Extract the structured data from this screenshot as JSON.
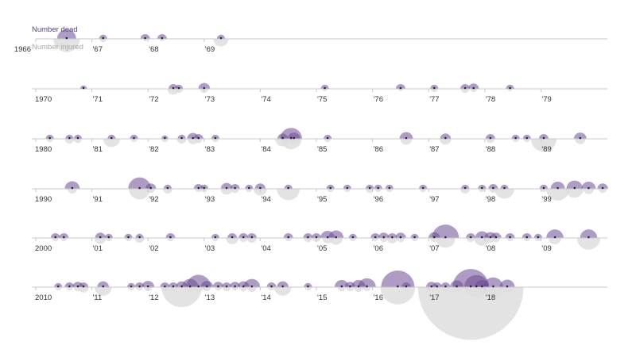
{
  "legend": {
    "dead_label": "Number dead",
    "injured_label": "Number injured"
  },
  "colors": {
    "dead": "#6d4a93",
    "injured": "#dedede",
    "axis": "#c8c8c8",
    "tick_text": "#333333",
    "dot": "#2e1d44"
  },
  "chart_data": {
    "type": "timeline-bubble",
    "title": "",
    "rows": [
      {
        "start_year": 1966,
        "tick_labels": [
          "1966",
          "'67",
          "'68",
          "'69"
        ],
        "events": [
          {
            "date": 1966.55,
            "dead": 16,
            "injured": 31
          },
          {
            "date": 1967.2,
            "dead": 3,
            "injured": 2
          },
          {
            "date": 1967.95,
            "dead": 4,
            "injured": 1
          },
          {
            "date": 1968.25,
            "dead": 4,
            "injured": 1
          },
          {
            "date": 1969.3,
            "dead": 3,
            "injured": 10
          }
        ]
      },
      {
        "start_year": 1970,
        "tick_labels": [
          "1970",
          "'71",
          "'72",
          "'73",
          "'74",
          "'75",
          "'76",
          "'77",
          "'78",
          "'79"
        ],
        "events": [
          {
            "date": 1970.85,
            "dead": 2,
            "injured": 0
          },
          {
            "date": 1972.45,
            "dead": 4,
            "injured": 6
          },
          {
            "date": 1972.55,
            "dead": 3,
            "injured": 3
          },
          {
            "date": 1973.0,
            "dead": 6,
            "injured": 3
          },
          {
            "date": 1975.15,
            "dead": 3,
            "injured": 1
          },
          {
            "date": 1976.5,
            "dead": 4,
            "injured": 1
          },
          {
            "date": 1977.1,
            "dead": 3,
            "injured": 2
          },
          {
            "date": 1977.65,
            "dead": 4,
            "injured": 3
          },
          {
            "date": 1977.8,
            "dead": 5,
            "injured": 2
          },
          {
            "date": 1978.45,
            "dead": 3,
            "injured": 1
          }
        ]
      },
      {
        "start_year": 1980,
        "tick_labels": [
          "1980",
          "'81",
          "'82",
          "'83",
          "'84",
          "'85",
          "'86",
          "'87",
          "'88",
          "'89"
        ],
        "events": [
          {
            "date": 1980.25,
            "dead": 3,
            "injured": 2
          },
          {
            "date": 1980.6,
            "dead": 3,
            "injured": 4
          },
          {
            "date": 1980.75,
            "dead": 3,
            "injured": 3
          },
          {
            "date": 1981.35,
            "dead": 3,
            "injured": 12
          },
          {
            "date": 1981.75,
            "dead": 3,
            "injured": 2
          },
          {
            "date": 1982.3,
            "dead": 2,
            "injured": 2
          },
          {
            "date": 1982.6,
            "dead": 3,
            "injured": 4
          },
          {
            "date": 1982.8,
            "dead": 6,
            "injured": 5
          },
          {
            "date": 1982.9,
            "dead": 4,
            "injured": 3
          },
          {
            "date": 1983.2,
            "dead": 3,
            "injured": 2
          },
          {
            "date": 1984.4,
            "dead": 5,
            "injured": 10
          },
          {
            "date": 1984.55,
            "dead": 21,
            "injured": 19
          },
          {
            "date": 1984.6,
            "dead": 7,
            "injured": 5
          },
          {
            "date": 1985.2,
            "dead": 3,
            "injured": 2
          },
          {
            "date": 1986.6,
            "dead": 8,
            "injured": 6
          },
          {
            "date": 1987.3,
            "dead": 5,
            "injured": 6
          },
          {
            "date": 1988.1,
            "dead": 4,
            "injured": 3
          },
          {
            "date": 1988.55,
            "dead": 3,
            "injured": 2
          },
          {
            "date": 1988.75,
            "dead": 3,
            "injured": 2
          },
          {
            "date": 1989.05,
            "dead": 4,
            "injured": 29
          },
          {
            "date": 1989.7,
            "dead": 7,
            "injured": 5
          }
        ]
      },
      {
        "start_year": 1990,
        "tick_labels": [
          "1990",
          "'91",
          "'92",
          "'93",
          "'94",
          "'95",
          "'96",
          "'97",
          "'98",
          "'99"
        ],
        "events": [
          {
            "date": 1990.65,
            "dead": 10,
            "injured": 4
          },
          {
            "date": 1991.85,
            "dead": 23,
            "injured": 20
          },
          {
            "date": 1992.05,
            "dead": 5,
            "injured": 3
          },
          {
            "date": 1992.35,
            "dead": 3,
            "injured": 4
          },
          {
            "date": 1992.9,
            "dead": 4,
            "injured": 2
          },
          {
            "date": 1993.0,
            "dead": 3,
            "injured": 2
          },
          {
            "date": 1993.4,
            "dead": 6,
            "injured": 6
          },
          {
            "date": 1993.55,
            "dead": 4,
            "injured": 3
          },
          {
            "date": 1993.8,
            "dead": 3,
            "injured": 2
          },
          {
            "date": 1994.0,
            "dead": 5,
            "injured": 8
          },
          {
            "date": 1994.5,
            "dead": 3,
            "injured": 23
          },
          {
            "date": 1995.25,
            "dead": 3,
            "injured": 2
          },
          {
            "date": 1995.55,
            "dead": 3,
            "injured": 2
          },
          {
            "date": 1995.95,
            "dead": 3,
            "injured": 3
          },
          {
            "date": 1996.1,
            "dead": 3,
            "injured": 2
          },
          {
            "date": 1996.3,
            "dead": 3,
            "injured": 2
          },
          {
            "date": 1996.9,
            "dead": 3,
            "injured": 2
          },
          {
            "date": 1997.65,
            "dead": 3,
            "injured": 4
          },
          {
            "date": 1997.95,
            "dead": 3,
            "injured": 2
          },
          {
            "date": 1998.15,
            "dead": 4,
            "injured": 3
          },
          {
            "date": 1998.35,
            "dead": 3,
            "injured": 17
          },
          {
            "date": 1999.05,
            "dead": 3,
            "injured": 2
          },
          {
            "date": 1999.3,
            "dead": 9,
            "injured": 24
          },
          {
            "date": 1999.6,
            "dead": 12,
            "injured": 14
          },
          {
            "date": 1999.85,
            "dead": 9,
            "injured": 5
          },
          {
            "date": 2000.1,
            "dead": 5,
            "injured": 3
          }
        ]
      },
      {
        "start_year": 2000,
        "tick_labels": [
          "2000",
          "'01",
          "'02",
          "'03",
          "'04",
          "'05",
          "'06",
          "'07",
          "'08",
          "'09"
        ],
        "events": [
          {
            "date": 2000.35,
            "dead": 4,
            "injured": 2
          },
          {
            "date": 2000.5,
            "dead": 4,
            "injured": 2
          },
          {
            "date": 2001.15,
            "dead": 5,
            "injured": 6
          },
          {
            "date": 2001.3,
            "dead": 3,
            "injured": 2
          },
          {
            "date": 2001.65,
            "dead": 3,
            "injured": 2
          },
          {
            "date": 2001.85,
            "dead": 3,
            "injured": 4
          },
          {
            "date": 2002.4,
            "dead": 4,
            "injured": 2
          },
          {
            "date": 2003.2,
            "dead": 3,
            "injured": 2
          },
          {
            "date": 2003.5,
            "dead": 4,
            "injured": 7
          },
          {
            "date": 2003.7,
            "dead": 4,
            "injured": 3
          },
          {
            "date": 2003.85,
            "dead": 4,
            "injured": 4
          },
          {
            "date": 2004.5,
            "dead": 4,
            "injured": 2
          },
          {
            "date": 2004.85,
            "dead": 4,
            "injured": 3
          },
          {
            "date": 2005.0,
            "dead": 4,
            "injured": 3
          },
          {
            "date": 2005.2,
            "dead": 9,
            "injured": 5
          },
          {
            "date": 2005.35,
            "dead": 10,
            "injured": 8
          },
          {
            "date": 2005.65,
            "dead": 3,
            "injured": 2
          },
          {
            "date": 2006.05,
            "dead": 4,
            "injured": 2
          },
          {
            "date": 2006.2,
            "dead": 5,
            "injured": 3
          },
          {
            "date": 2006.35,
            "dead": 4,
            "injured": 5
          },
          {
            "date": 2006.5,
            "dead": 5,
            "injured": 3
          },
          {
            "date": 2006.75,
            "dead": 3,
            "injured": 2
          },
          {
            "date": 2007.1,
            "dead": 6,
            "injured": 3
          },
          {
            "date": 2007.3,
            "dead": 32,
            "injured": 17
          },
          {
            "date": 2007.75,
            "dead": 4,
            "injured": 3
          },
          {
            "date": 2007.95,
            "dead": 8,
            "injured": 11
          },
          {
            "date": 2008.1,
            "dead": 6,
            "injured": 4
          },
          {
            "date": 2008.2,
            "dead": 5,
            "injured": 3
          },
          {
            "date": 2008.45,
            "dead": 4,
            "injured": 2
          },
          {
            "date": 2008.75,
            "dead": 4,
            "injured": 2
          },
          {
            "date": 2008.95,
            "dead": 3,
            "injured": 2
          },
          {
            "date": 2009.25,
            "dead": 13,
            "injured": 7
          },
          {
            "date": 2009.85,
            "dead": 13,
            "injured": 24
          }
        ]
      },
      {
        "start_year": 2010,
        "tick_labels": [
          "2010",
          "'11",
          "'12",
          "'13",
          "'14",
          "'15",
          "'16",
          "'17",
          "'18"
        ],
        "events": [
          {
            "date": 2010.4,
            "dead": 3,
            "injured": 2
          },
          {
            "date": 2010.6,
            "dead": 4,
            "injured": 2
          },
          {
            "date": 2010.75,
            "dead": 5,
            "injured": 3
          },
          {
            "date": 2010.85,
            "dead": 4,
            "injured": 5
          },
          {
            "date": 2011.2,
            "dead": 6,
            "injured": 13
          },
          {
            "date": 2011.7,
            "dead": 3,
            "injured": 2
          },
          {
            "date": 2011.85,
            "dead": 4,
            "injured": 2
          },
          {
            "date": 2012.0,
            "dead": 7,
            "injured": 3
          },
          {
            "date": 2012.3,
            "dead": 4,
            "injured": 3
          },
          {
            "date": 2012.45,
            "dead": 4,
            "injured": 3
          },
          {
            "date": 2012.6,
            "dead": 6,
            "injured": 70
          },
          {
            "date": 2012.75,
            "dead": 12,
            "injured": 5
          },
          {
            "date": 2012.9,
            "dead": 27,
            "injured": 4
          },
          {
            "date": 2013.05,
            "dead": 7,
            "injured": 3
          },
          {
            "date": 2013.25,
            "dead": 5,
            "injured": 2
          },
          {
            "date": 2013.4,
            "dead": 4,
            "injured": 3
          },
          {
            "date": 2013.55,
            "dead": 5,
            "injured": 2
          },
          {
            "date": 2013.7,
            "dead": 6,
            "injured": 3
          },
          {
            "date": 2013.85,
            "dead": 12,
            "injured": 4
          },
          {
            "date": 2014.2,
            "dead": 4,
            "injured": 2
          },
          {
            "date": 2014.4,
            "dead": 6,
            "injured": 13
          },
          {
            "date": 2014.85,
            "dead": 3,
            "injured": 2
          },
          {
            "date": 2015.45,
            "dead": 9,
            "injured": 3
          },
          {
            "date": 2015.6,
            "dead": 5,
            "injured": 3
          },
          {
            "date": 2015.75,
            "dead": 9,
            "injured": 4
          },
          {
            "date": 2015.9,
            "dead": 14,
            "injured": 3
          },
          {
            "date": 2016.45,
            "dead": 49,
            "injured": 53
          },
          {
            "date": 2016.6,
            "dead": 4,
            "injured": 3
          },
          {
            "date": 2017.05,
            "dead": 5,
            "injured": 3
          },
          {
            "date": 2017.15,
            "dead": 4,
            "injured": 2
          },
          {
            "date": 2017.3,
            "dead": 4,
            "injured": 4
          },
          {
            "date": 2017.5,
            "dead": 8,
            "injured": 5
          },
          {
            "date": 2017.75,
            "dead": 58,
            "injured": 489
          },
          {
            "date": 2017.85,
            "dead": 26,
            "injured": 20
          },
          {
            "date": 2017.95,
            "dead": 9,
            "injured": 5
          },
          {
            "date": 2018.15,
            "dead": 17,
            "injured": 17
          },
          {
            "date": 2018.4,
            "dead": 10,
            "injured": 5
          }
        ]
      }
    ]
  }
}
